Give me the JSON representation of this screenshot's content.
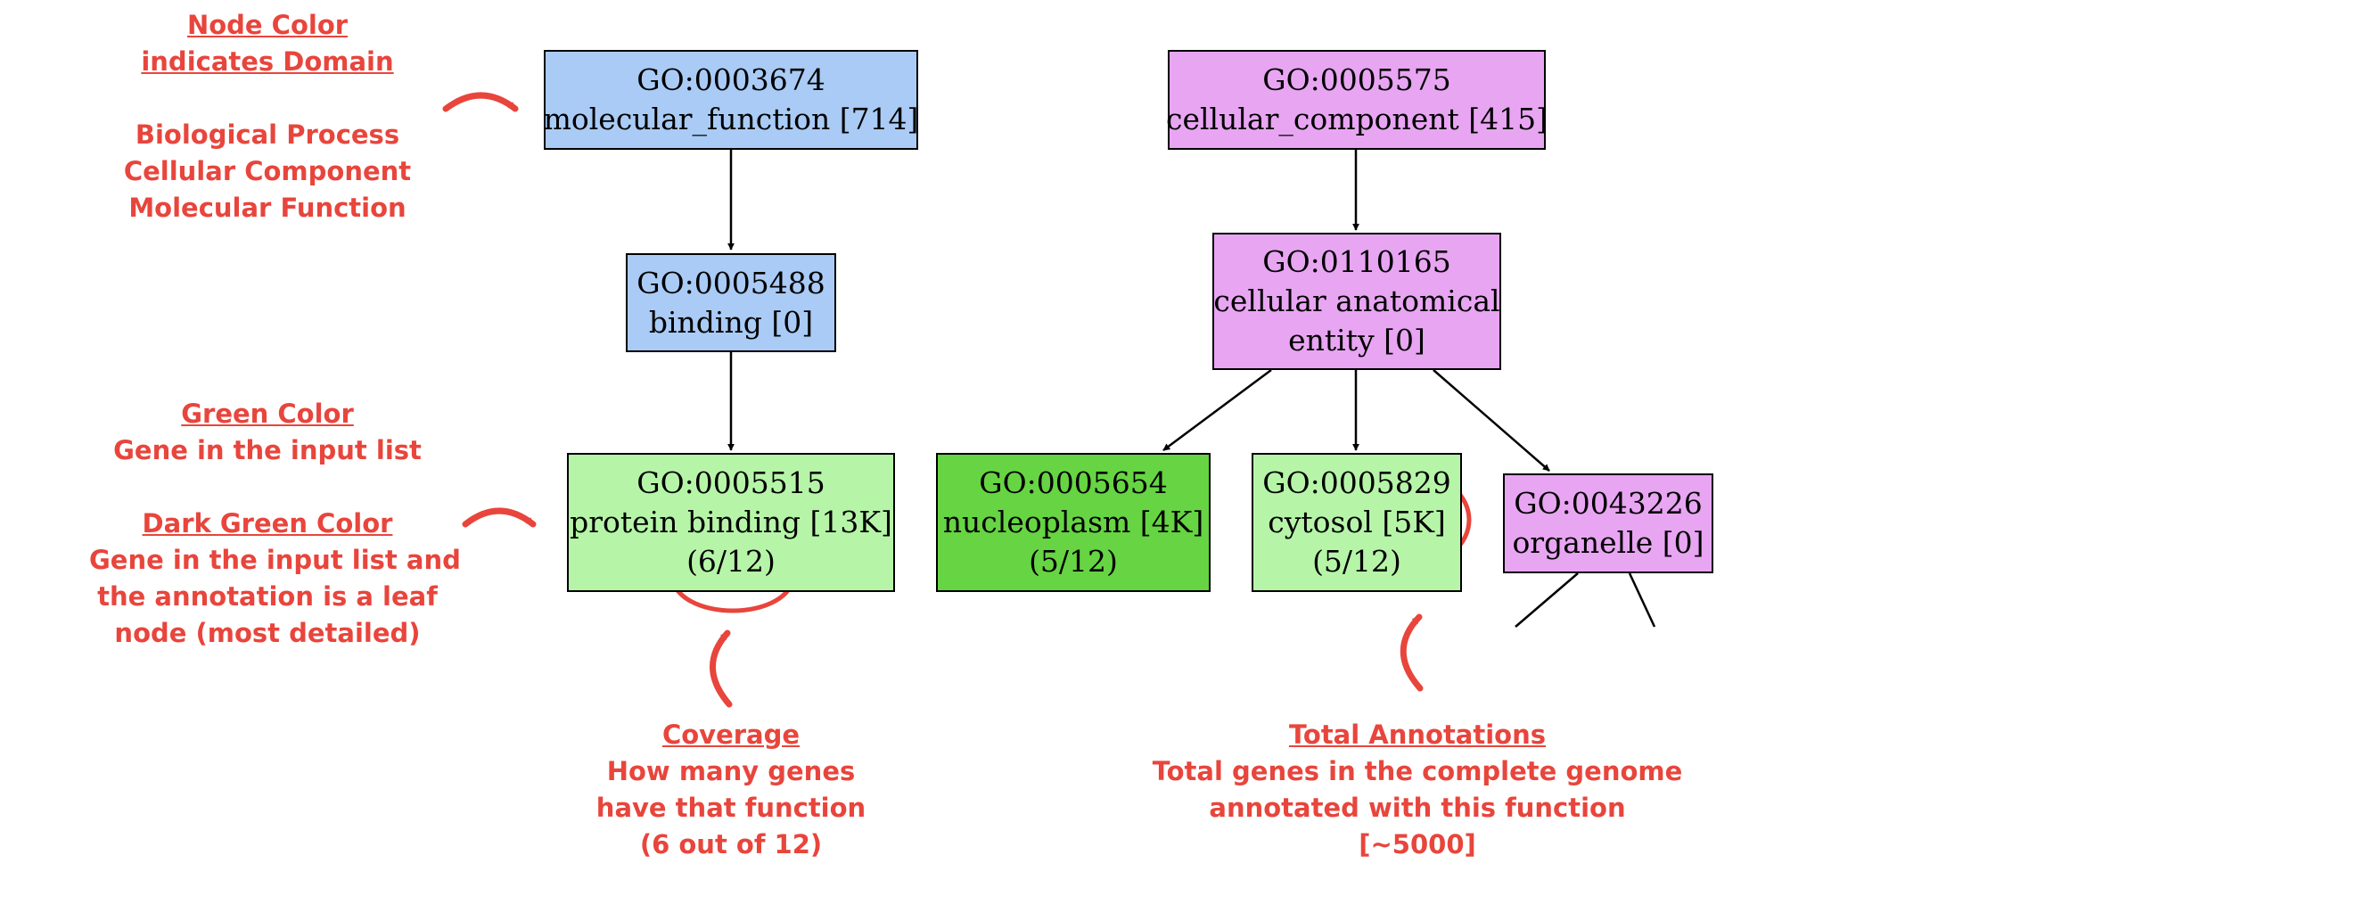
{
  "annotations": {
    "node_color": {
      "title_line1": "Node Color",
      "title_line2": "indicates Domain",
      "items": [
        "Biological Process",
        "Cellular Component",
        "Molecular Function"
      ]
    },
    "green": {
      "title": "Green Color",
      "desc": "Gene in the input list"
    },
    "dark_green": {
      "title": "Dark Green Color",
      "lines": [
        "Gene in the input list and",
        "the annotation is a leaf",
        "node (most detailed)"
      ]
    },
    "coverage": {
      "title": "Coverage",
      "lines": [
        "How many genes",
        "have that function",
        "(6 out of 12)"
      ]
    },
    "total": {
      "title": "Total Annotations",
      "lines": [
        "Total genes in the complete genome",
        "annotated with this function",
        "[~5000]"
      ]
    }
  },
  "nodes": {
    "mf": {
      "id": "GO:0003674",
      "label": "molecular_function [714]",
      "color": "#a9cbf5"
    },
    "binding": {
      "id": "GO:0005488",
      "label": "binding [0]",
      "color": "#a9cbf5"
    },
    "protein_binding": {
      "id": "GO:0005515",
      "label": "protein binding [13K]",
      "coverage": "(6/12)",
      "color": "#b6f5a8"
    },
    "cc": {
      "id": "GO:0005575",
      "label": "cellular_component [415]",
      "color": "#e8a5f2"
    },
    "cae": {
      "id": "GO:0110165",
      "label_line1": "cellular anatomical",
      "label_line2": "entity [0]",
      "color": "#e8a5f2"
    },
    "nucleoplasm": {
      "id": "GO:0005654",
      "label": "nucleoplasm [4K]",
      "coverage": "(5/12)",
      "color": "#66d443"
    },
    "cytosol": {
      "id": "GO:0005829",
      "label": "cytosol [5K]",
      "coverage": "(5/12)",
      "color": "#b6f5a8"
    },
    "organelle": {
      "id": "GO:0043226",
      "label": "organelle [0]",
      "color": "#e8a5f2"
    }
  },
  "accent_color": "#e8453c"
}
